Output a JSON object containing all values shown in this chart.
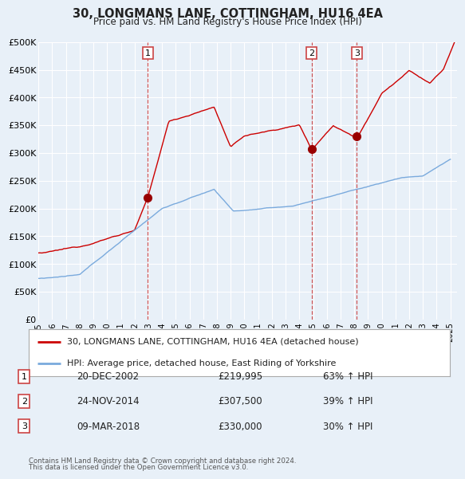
{
  "title": "30, LONGMANS LANE, COTTINGHAM, HU16 4EA",
  "subtitle": "Price paid vs. HM Land Registry's House Price Index (HPI)",
  "bg_color": "#e8f0f8",
  "plot_bg_color": "#e8f0f8",
  "red_line_color": "#cc0000",
  "blue_line_color": "#7aaadd",
  "sale_marker_color": "#990000",
  "dashed_line_color": "#cc4444",
  "ylim": [
    0,
    500000
  ],
  "yticks": [
    0,
    50000,
    100000,
    150000,
    200000,
    250000,
    300000,
    350000,
    400000,
    450000,
    500000
  ],
  "sales": [
    {
      "date_num": 2002.97,
      "price": 219995,
      "label": "1"
    },
    {
      "date_num": 2014.9,
      "price": 307500,
      "label": "2"
    },
    {
      "date_num": 2018.19,
      "price": 330000,
      "label": "3"
    }
  ],
  "sale_dates_str": [
    "20-DEC-2002",
    "24-NOV-2014",
    "09-MAR-2018"
  ],
  "sale_prices_str": [
    "£219,995",
    "£307,500",
    "£330,000"
  ],
  "sale_hpi_str": [
    "63% ↑ HPI",
    "39% ↑ HPI",
    "30% ↑ HPI"
  ],
  "legend_red": "30, LONGMANS LANE, COTTINGHAM, HU16 4EA (detached house)",
  "legend_blue": "HPI: Average price, detached house, East Riding of Yorkshire",
  "footer1": "Contains HM Land Registry data © Crown copyright and database right 2024.",
  "footer2": "This data is licensed under the Open Government Licence v3.0.",
  "xlim_start": 1995.0,
  "xlim_end": 2025.5
}
